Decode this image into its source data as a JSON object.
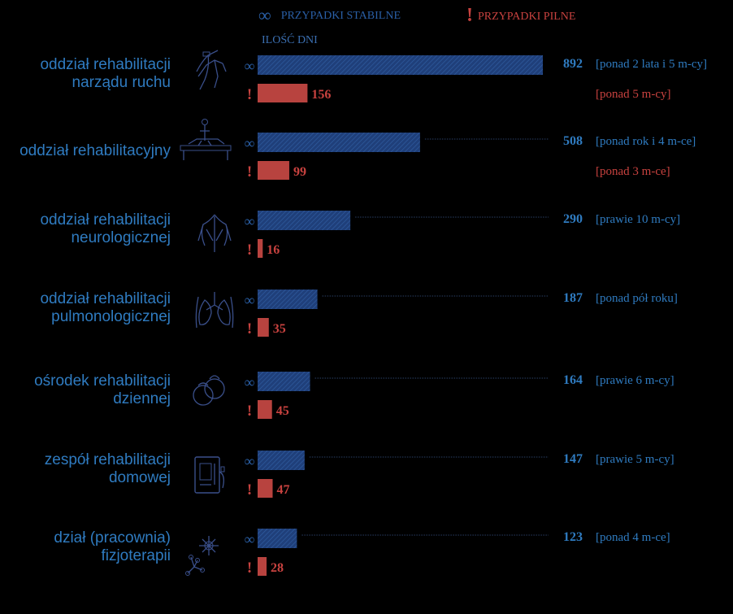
{
  "legend": {
    "stable_symbol": "∞",
    "stable_label": "PRZYPADKI STABILNE",
    "urgent_symbol": "!",
    "urgent_label": "PRZYPADKI PILNE"
  },
  "chart_data": {
    "type": "bar",
    "orientation": "horizontal",
    "value_axis_label": "ILOŚĆ DNI",
    "categories": [
      {
        "lines": [
          "oddział rehabilitacji",
          "narządu ruchu"
        ],
        "icon": "legs-exercise-icon"
      },
      {
        "lines": [
          "oddział rehabilitacyjny"
        ],
        "icon": "physio-table-icon"
      },
      {
        "lines": [
          "oddział rehabilitacji",
          "neurologicznej"
        ],
        "icon": "nervous-system-icon"
      },
      {
        "lines": [
          "oddział rehabilitacji",
          "pulmonologicznej"
        ],
        "icon": "lungs-icon"
      },
      {
        "lines": [
          "ośrodek rehabilitacji",
          "dziennej"
        ],
        "icon": "kettlebell-icon"
      },
      {
        "lines": [
          "zespół rehabilitacji",
          "domowej"
        ],
        "icon": "home-device-icon"
      },
      {
        "lines": [
          "dział (pracownia)",
          "fizjoterapii"
        ],
        "icon": "physio-molecule-icon"
      }
    ],
    "series": [
      {
        "name": "PRZYPADKI STABILNE",
        "symbol": "∞",
        "color": "#1f3f7a",
        "values": [
          892,
          508,
          290,
          187,
          164,
          147,
          123
        ],
        "notes": [
          "[ponad 2 lata i 5 m-cy]",
          "[ponad rok i 4 m-ce]",
          "[prawie 10 m-cy]",
          "[ponad pół roku]",
          "[prawie 6 m-cy]",
          "[prawie 5 m-cy]",
          "[ponad 4 m-ce]"
        ]
      },
      {
        "name": "PRZYPADKI PILNE",
        "symbol": "!",
        "color": "#b8433f",
        "values": [
          156,
          99,
          16,
          35,
          45,
          47,
          28
        ],
        "notes": [
          "[ponad 5 m-cy]",
          "[ponad 3 m-ce]",
          "",
          "",
          "",
          "",
          ""
        ]
      }
    ],
    "xlim": [
      0,
      892
    ],
    "colors": {
      "stable_text": "#2f7bc0",
      "stable_symbol": "#2a5fa6",
      "urgent": "#c8423f",
      "label": "#2f7bc0"
    }
  }
}
